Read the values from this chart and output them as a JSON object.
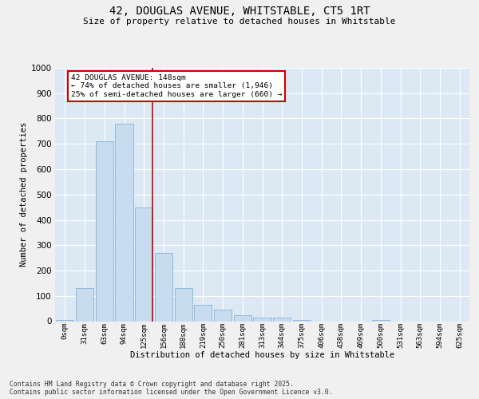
{
  "title_line1": "42, DOUGLAS AVENUE, WHITSTABLE, CT5 1RT",
  "title_line2": "Size of property relative to detached houses in Whitstable",
  "xlabel": "Distribution of detached houses by size in Whitstable",
  "ylabel": "Number of detached properties",
  "bar_color": "#c8dcf0",
  "bar_edge_color": "#8ab4d8",
  "background_color": "#dce9f5",
  "fig_background_color": "#f0f0f0",
  "grid_color": "#ffffff",
  "red_color": "#cc0000",
  "categories": [
    "0sqm",
    "31sqm",
    "63sqm",
    "94sqm",
    "125sqm",
    "156sqm",
    "188sqm",
    "219sqm",
    "250sqm",
    "281sqm",
    "313sqm",
    "344sqm",
    "375sqm",
    "406sqm",
    "438sqm",
    "469sqm",
    "500sqm",
    "531sqm",
    "563sqm",
    "594sqm",
    "625sqm"
  ],
  "values": [
    5,
    130,
    710,
    780,
    450,
    270,
    130,
    65,
    45,
    25,
    15,
    15,
    5,
    0,
    0,
    0,
    5,
    0,
    0,
    0,
    0
  ],
  "ylim": [
    0,
    1000
  ],
  "yticks": [
    0,
    100,
    200,
    300,
    400,
    500,
    600,
    700,
    800,
    900,
    1000
  ],
  "red_line_x": 4.43,
  "annotation_text": "42 DOUGLAS AVENUE: 148sqm\n← 74% of detached houses are smaller (1,946)\n25% of semi-detached houses are larger (660) →",
  "footnote_line1": "Contains HM Land Registry data © Crown copyright and database right 2025.",
  "footnote_line2": "Contains public sector information licensed under the Open Government Licence v3.0."
}
